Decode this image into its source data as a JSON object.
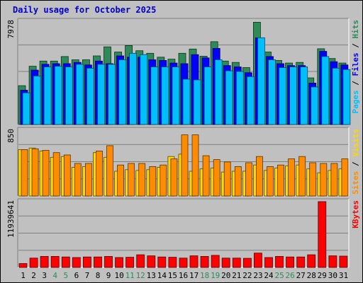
{
  "chart_data": {
    "type": "bar",
    "title": "Daily usage for October 2025",
    "categories": [
      "1",
      "2",
      "3",
      "4",
      "5",
      "6",
      "7",
      "8",
      "9",
      "10",
      "11",
      "12",
      "13",
      "14",
      "15",
      "16",
      "17",
      "18",
      "19",
      "20",
      "21",
      "22",
      "23",
      "24",
      "25",
      "26",
      "27",
      "28",
      "29",
      "30",
      "31"
    ],
    "weekend_days": [
      "4",
      "5",
      "11",
      "12",
      "18",
      "19",
      "25",
      "26"
    ],
    "panels": [
      {
        "name": "hits-files-pages",
        "ymax": 7978,
        "ymax_label": "7978",
        "right_label": [
          {
            "text": "Pages",
            "color": "#00bfff"
          },
          {
            "text": " / ",
            "color": "#000000"
          },
          {
            "text": "Files",
            "color": "#0000ff"
          },
          {
            "text": " / ",
            "color": "#000000"
          },
          {
            "text": "Hits",
            "color": "#2e8b57"
          }
        ],
        "series": [
          {
            "name": "Hits",
            "color": "#2e8b57",
            "values": [
              3000,
              4500,
              4900,
              4900,
              5250,
              5000,
              5000,
              5300,
              6000,
              5600,
              6100,
              5700,
              5500,
              5200,
              5050,
              5500,
              5830,
              5280,
              6400,
              4900,
              4800,
              4400,
              7900,
              5600,
              4950,
              4750,
              4800,
              3600,
              5850,
              5100,
              4750
            ]
          },
          {
            "name": "Files",
            "color": "#0000ff",
            "values": [
              2650,
              4200,
              4650,
              4700,
              4700,
              4800,
              4600,
              4900,
              4700,
              5300,
              5200,
              5200,
              5000,
              4950,
              4750,
              4700,
              5400,
              5150,
              5880,
              4550,
              4450,
              4000,
              6700,
              5250,
              4700,
              4550,
              4550,
              3200,
              5650,
              4850,
              4600
            ]
          },
          {
            "name": "Pages",
            "color": "#00bfff",
            "values": [
              2450,
              3750,
              4450,
              4500,
              4450,
              4650,
              4350,
              4650,
              4650,
              5000,
              5500,
              5400,
              4450,
              4450,
              4450,
              3500,
              3450,
              4450,
              5000,
              4150,
              4100,
              3700,
              6700,
              5000,
              4400,
              4450,
              4450,
              2900,
              5250,
              4350,
              4250
            ]
          }
        ]
      },
      {
        "name": "visits-sites",
        "ymax": 850,
        "ymax_label": "850",
        "right_label": [
          {
            "text": "Sites",
            "color": "#ff8c00"
          },
          {
            "text": " / ",
            "color": "#000000"
          },
          {
            "text": "Visits",
            "color": "#ffd700"
          }
        ],
        "series": [
          {
            "name": "Visits",
            "color": "#ffd700",
            "values": [
              600,
              620,
              580,
              500,
              510,
              370,
              380,
              560,
              500,
              320,
              340,
              330,
              340,
              370,
              510,
              540,
              320,
              350,
              360,
              310,
              320,
              320,
              400,
              330,
              360,
              390,
              400,
              350,
              300,
              330,
              350
            ]
          },
          {
            "name": "Sites",
            "color": "#ff8c00",
            "values": [
              600,
              610,
              590,
              560,
              530,
              420,
              420,
              580,
              650,
              400,
              420,
              420,
              380,
              400,
              480,
              790,
              790,
              520,
              470,
              440,
              380,
              430,
              510,
              380,
              400,
              480,
              510,
              430,
              420,
              420,
              480
            ]
          }
        ]
      },
      {
        "name": "kbytes",
        "ymax": 11939641,
        "ymax_label": "11939641",
        "right_label": [
          {
            "text": "KBytes",
            "color": "#ff0000"
          }
        ],
        "series": [
          {
            "name": "KBytes",
            "color": "#ff0000",
            "values": [
              700000,
              1700000,
              2000000,
              2000000,
              1900000,
              1800000,
              1900000,
              1900000,
              2000000,
              1800000,
              1850000,
              2300000,
              2100000,
              1900000,
              1850000,
              1700000,
              2100000,
              2000000,
              2200000,
              1700000,
              1700000,
              1650000,
              2600000,
              1800000,
              2000000,
              1900000,
              1900000,
              2300000,
              11939641,
              2100000,
              2050000
            ]
          }
        ]
      }
    ],
    "tick_color_weekday": "#000000",
    "tick_color_weekend": "#2e8b57",
    "grid": true,
    "legend_placement": "right"
  }
}
